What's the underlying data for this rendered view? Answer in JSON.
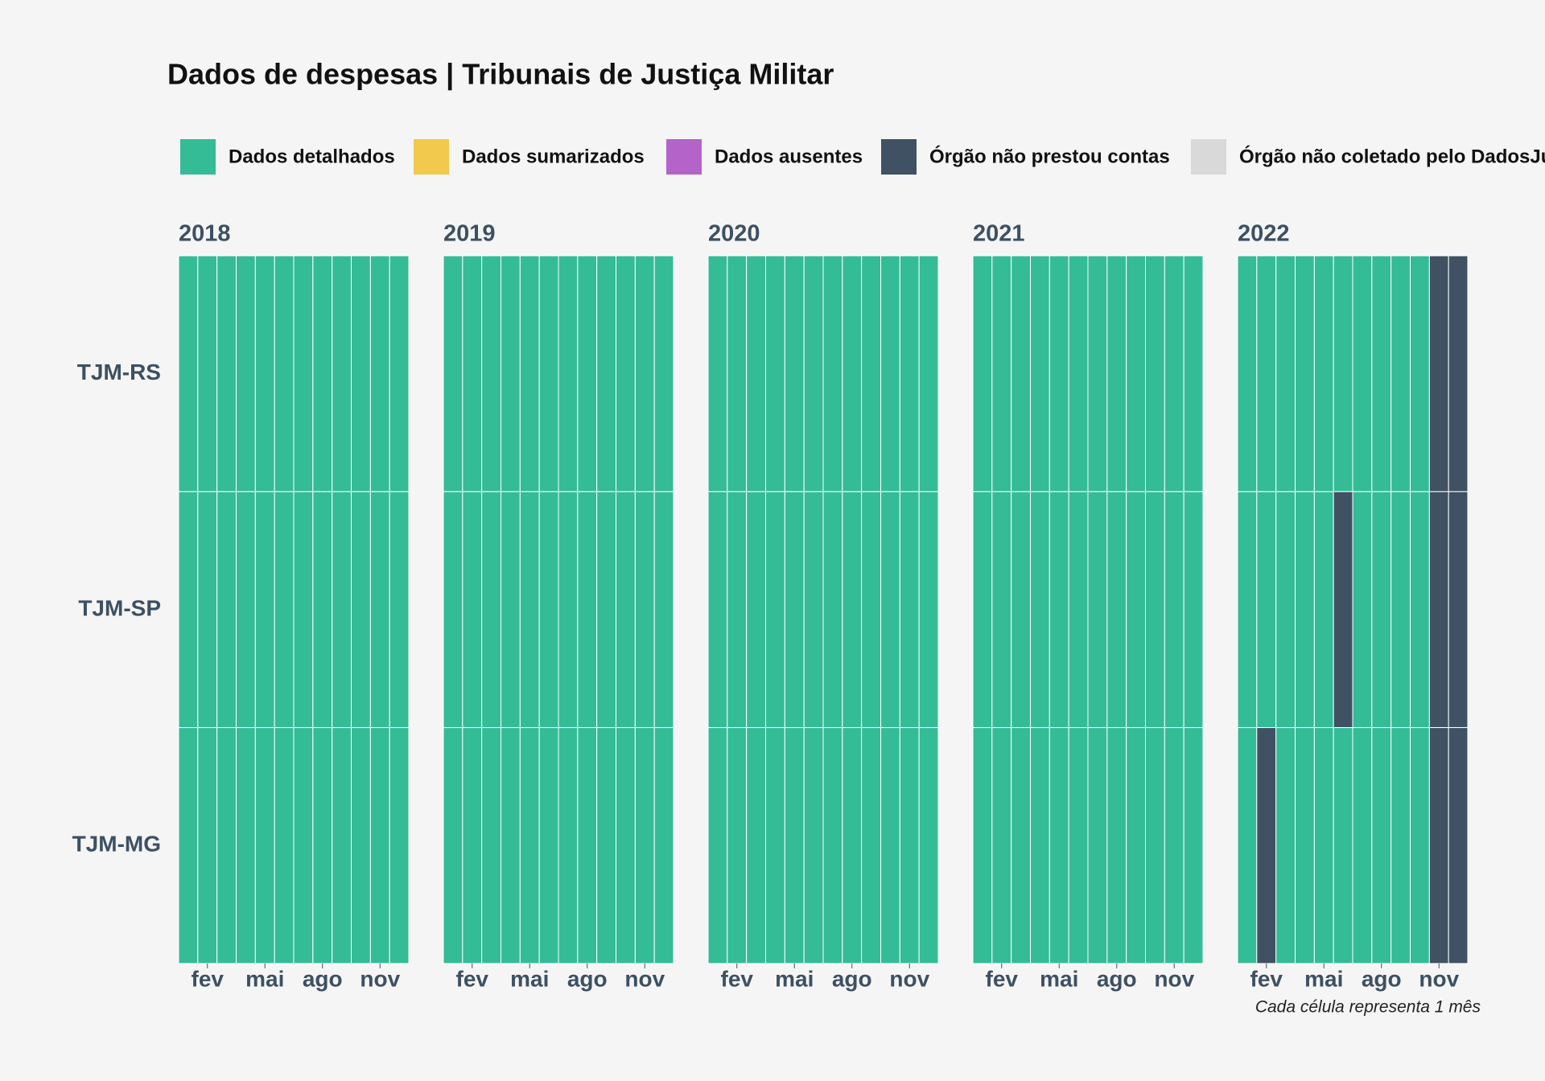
{
  "chart_data": {
    "type": "heatmap",
    "title": "Dados de despesas | Tribunais de Justiça Militar",
    "caption": "Cada célula representa 1 mês",
    "legend": [
      {
        "name": "Dados detalhados",
        "color": "#33bc96"
      },
      {
        "name": "Dados sumarizados",
        "color": "#f2c94c"
      },
      {
        "name": "Dados ausentes",
        "color": "#b464c8"
      },
      {
        "name": "Órgão não prestou contas",
        "color": "#3f5163"
      },
      {
        "name": "Órgão não coletado pelo DadosJusBr",
        "color": "#d9d9d9"
      }
    ],
    "rows": [
      "TJM-RS",
      "TJM-SP",
      "TJM-MG"
    ],
    "month_ticks": [
      {
        "value": 2,
        "label": "fev"
      },
      {
        "value": 5,
        "label": "mai"
      },
      {
        "value": 8,
        "label": "ago"
      },
      {
        "value": 11,
        "label": "nov"
      }
    ],
    "years": [
      {
        "year": "2018",
        "cells": [
          [
            0,
            0,
            0,
            0,
            0,
            0,
            0,
            0,
            0,
            0,
            0,
            0
          ],
          [
            0,
            0,
            0,
            0,
            0,
            0,
            0,
            0,
            0,
            0,
            0,
            0
          ],
          [
            0,
            0,
            0,
            0,
            0,
            0,
            0,
            0,
            0,
            0,
            0,
            0
          ]
        ]
      },
      {
        "year": "2019",
        "cells": [
          [
            0,
            0,
            0,
            0,
            0,
            0,
            0,
            0,
            0,
            0,
            0,
            0
          ],
          [
            0,
            0,
            0,
            0,
            0,
            0,
            0,
            0,
            0,
            0,
            0,
            0
          ],
          [
            0,
            0,
            0,
            0,
            0,
            0,
            0,
            0,
            0,
            0,
            0,
            0
          ]
        ]
      },
      {
        "year": "2020",
        "cells": [
          [
            0,
            0,
            0,
            0,
            0,
            0,
            0,
            0,
            0,
            0,
            0,
            0
          ],
          [
            0,
            0,
            0,
            0,
            0,
            0,
            0,
            0,
            0,
            0,
            0,
            0
          ],
          [
            0,
            0,
            0,
            0,
            0,
            0,
            0,
            0,
            0,
            0,
            0,
            0
          ]
        ]
      },
      {
        "year": "2021",
        "cells": [
          [
            0,
            0,
            0,
            0,
            0,
            0,
            0,
            0,
            0,
            0,
            0,
            0
          ],
          [
            0,
            0,
            0,
            0,
            0,
            0,
            0,
            0,
            0,
            0,
            0,
            0
          ],
          [
            0,
            0,
            0,
            0,
            0,
            0,
            0,
            0,
            0,
            0,
            0,
            0
          ]
        ]
      },
      {
        "year": "2022",
        "cells": [
          [
            0,
            0,
            0,
            0,
            0,
            0,
            0,
            0,
            0,
            0,
            3,
            3
          ],
          [
            0,
            0,
            0,
            0,
            0,
            3,
            0,
            0,
            0,
            0,
            3,
            3
          ],
          [
            0,
            3,
            0,
            0,
            0,
            0,
            0,
            0,
            0,
            0,
            3,
            3
          ]
        ]
      }
    ]
  }
}
